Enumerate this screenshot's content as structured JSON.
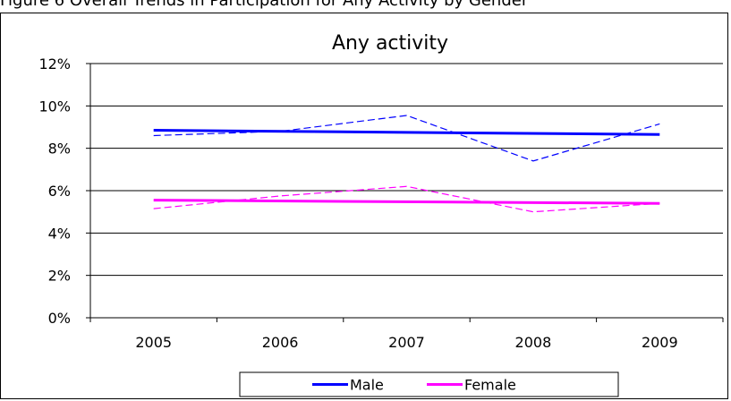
{
  "figure_caption": "Figure 6 Overall Trends in Participation for Any Activity by Gender",
  "chart_data": {
    "type": "line",
    "title": "Any activity",
    "xlabel": "",
    "ylabel": "",
    "categories": [
      "2005",
      "2006",
      "2007",
      "2008",
      "2009"
    ],
    "ylim": [
      0,
      12
    ],
    "yticks": [
      "0%",
      "2%",
      "4%",
      "6%",
      "8%",
      "10%",
      "12%"
    ],
    "ytick_values": [
      0,
      2,
      4,
      6,
      8,
      10,
      12
    ],
    "grid": true,
    "legend_position": "bottom",
    "series": [
      {
        "name": "Male",
        "values": [
          8.6,
          8.8,
          9.55,
          7.4,
          9.15
        ],
        "color": "#0000ff",
        "style": "dashed"
      },
      {
        "name": "Female",
        "values": [
          5.15,
          5.75,
          6.2,
          5.0,
          5.4
        ],
        "color": "#ff00ff",
        "style": "dashed"
      }
    ],
    "trendlines": [
      {
        "series": "Male",
        "start": 8.85,
        "end": 8.65,
        "color": "#0000ff"
      },
      {
        "series": "Female",
        "start": 5.55,
        "end": 5.4,
        "color": "#ff00ff"
      }
    ]
  }
}
